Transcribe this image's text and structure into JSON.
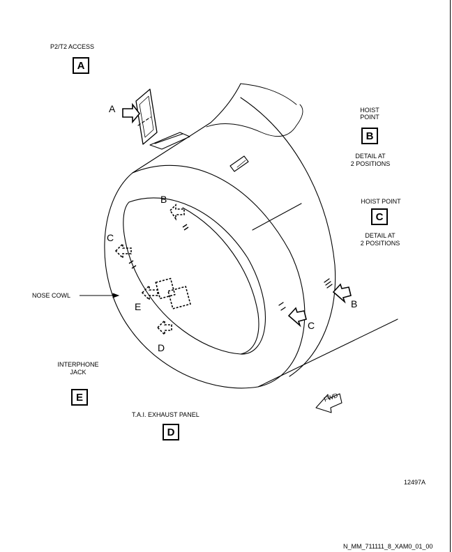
{
  "details": {
    "A": {
      "label": "P2/T2 ACCESS",
      "letter": "A"
    },
    "B": {
      "label_line1": "HOIST",
      "label_line2": "POINT",
      "letter": "B",
      "note_line1": "DETAIL AT",
      "note_line2": "2 POSITIONS"
    },
    "C": {
      "label": "HOIST POINT",
      "letter": "C",
      "note_line1": "DETAIL AT",
      "note_line2": "2 POSITIONS"
    },
    "D": {
      "label": "T.A.I. EXHAUST PANEL",
      "letter": "D"
    },
    "E": {
      "label_line1": "INTERPHONE",
      "label_line2": "JACK",
      "letter": "E"
    }
  },
  "leader": {
    "nose_cowl": "NOSE COWL"
  },
  "callouts": {
    "a": "A",
    "b_inner": "B",
    "c_inner": "C",
    "e_inner": "E",
    "d_inner": "D",
    "c_outer": "C",
    "b_outer": "B"
  },
  "fwd_marker": "FWD",
  "figure_number": "12497A",
  "drawing_id": "N_MM_711111_8_XAM0_01_00"
}
